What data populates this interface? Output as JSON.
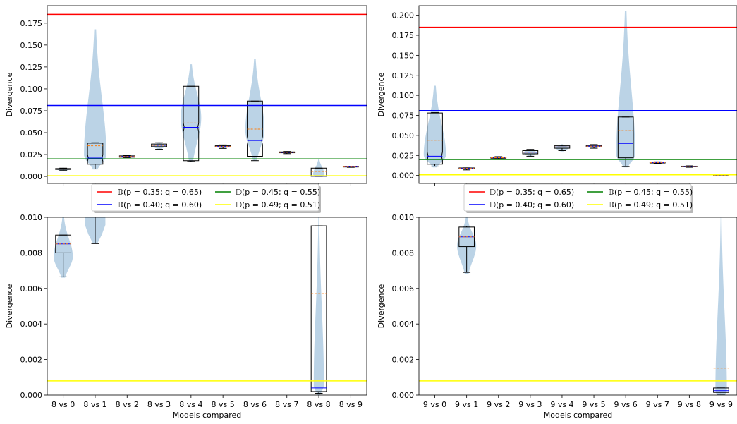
{
  "legend": {
    "items": [
      {
        "label": "𝔻(p = 0.35; q = 0.65)",
        "color": "#ff0000"
      },
      {
        "label": "𝔻(p = 0.45; q = 0.55)",
        "color": "#008000"
      },
      {
        "label": "𝔻(p = 0.40; q = 0.60)",
        "color": "#0000ff"
      },
      {
        "label": "𝔻(p = 0.49; q = 0.51)",
        "color": "#ffff00"
      }
    ]
  },
  "colors": {
    "violin": "#aac8e0",
    "mean_line": "#ff7f0e",
    "median_line": "#0000ff",
    "box_edge": "#000000"
  },
  "chart_data": [
    {
      "type": "box-violin",
      "panel": "top-left",
      "xlabel": "",
      "ylabel": "Divergence",
      "ylim": [
        -0.008,
        0.195
      ],
      "yticks": [
        "0.000",
        "0.025",
        "0.050",
        "0.075",
        "0.100",
        "0.125",
        "0.150",
        "0.175"
      ],
      "categories": [
        "8 vs 0",
        "8 vs 1",
        "8 vs 2",
        "8 vs 3",
        "8 vs 4",
        "8 vs 5",
        "8 vs 6",
        "8 vs 7",
        "8 vs 8",
        "8 vs 9"
      ],
      "show_xticks": false,
      "hlines": [
        {
          "name": "𝔻(p = 0.35; q = 0.65)",
          "y": 0.185,
          "color": "#ff0000"
        },
        {
          "name": "𝔻(p = 0.40; q = 0.60)",
          "y": 0.081,
          "color": "#0000ff"
        },
        {
          "name": "𝔻(p = 0.45; q = 0.55)",
          "y": 0.02,
          "color": "#008000"
        },
        {
          "name": "𝔻(p = 0.49; q = 0.51)",
          "y": 0.0008,
          "color": "#ffff00"
        }
      ],
      "boxes": [
        {
          "q1": 0.008,
          "median": 0.0085,
          "mean": 0.0085,
          "q3": 0.009,
          "wlo": 0.0067,
          "whi": 0.0095,
          "vmin": 0.006,
          "vmax": 0.01,
          "vwidth": 0.2,
          "vpeak": 0.5,
          "notch": false
        },
        {
          "q1": 0.014,
          "median": 0.021,
          "mean": 0.035,
          "q3": 0.038,
          "wlo": 0.0085,
          "whi": 0.0385,
          "vmin": 0.008,
          "vmax": 0.168,
          "vwidth": 0.35,
          "vpeak": 0.1,
          "notch": true
        },
        {
          "q1": 0.022,
          "median": 0.0228,
          "mean": 0.0228,
          "q3": 0.0235,
          "wlo": 0.0215,
          "whi": 0.024,
          "vmin": 0.021,
          "vmax": 0.024,
          "vwidth": 0.22,
          "vpeak": 0.5,
          "notch": false
        },
        {
          "q1": 0.034,
          "median": 0.0355,
          "mean": 0.0355,
          "q3": 0.037,
          "wlo": 0.031,
          "whi": 0.0385,
          "vmin": 0.031,
          "vmax": 0.039,
          "vwidth": 0.22,
          "vpeak": 0.5,
          "notch": false
        },
        {
          "q1": 0.018,
          "median": 0.056,
          "mean": 0.061,
          "q3": 0.103,
          "wlo": 0.017,
          "whi": 0.103,
          "vmin": 0.017,
          "vmax": 0.128,
          "vwidth": 0.32,
          "vpeak": 0.45,
          "notch": true
        },
        {
          "q1": 0.0335,
          "median": 0.0342,
          "mean": 0.0342,
          "q3": 0.035,
          "wlo": 0.032,
          "whi": 0.036,
          "vmin": 0.032,
          "vmax": 0.036,
          "vwidth": 0.22,
          "vpeak": 0.5,
          "notch": false
        },
        {
          "q1": 0.023,
          "median": 0.041,
          "mean": 0.054,
          "q3": 0.086,
          "wlo": 0.018,
          "whi": 0.086,
          "vmin": 0.018,
          "vmax": 0.134,
          "vwidth": 0.3,
          "vpeak": 0.3,
          "notch": true
        },
        {
          "q1": 0.027,
          "median": 0.0275,
          "mean": 0.0275,
          "q3": 0.028,
          "wlo": 0.026,
          "whi": 0.0285,
          "vmin": 0.026,
          "vmax": 0.029,
          "vwidth": 0.2,
          "vpeak": 0.5,
          "notch": false
        },
        {
          "q1": 0.0002,
          "median": 0.0004,
          "mean": 0.0057,
          "q3": 0.0095,
          "wlo": 0.0001,
          "whi": 0.0095,
          "vmin": 0.0,
          "vmax": 0.02,
          "vwidth": 0.18,
          "vpeak": 0.1,
          "notch": false
        },
        {
          "q1": 0.0108,
          "median": 0.0111,
          "mean": 0.0111,
          "q3": 0.0114,
          "wlo": 0.0104,
          "whi": 0.0117,
          "vmin": 0.0104,
          "vmax": 0.0118,
          "vwidth": 0.2,
          "vpeak": 0.5,
          "notch": false
        }
      ]
    },
    {
      "type": "box-violin",
      "panel": "top-right",
      "xlabel": "",
      "ylabel": "Divergence",
      "ylim": [
        -0.01,
        0.212
      ],
      "yticks": [
        "0.000",
        "0.025",
        "0.050",
        "0.075",
        "0.100",
        "0.125",
        "0.150",
        "0.175",
        "0.200"
      ],
      "categories": [
        "9 vs 0",
        "9 vs 1",
        "9 vs 2",
        "9 vs 3",
        "9 vs 4",
        "9 vs 5",
        "9 vs 6",
        "9 vs 7",
        "9 vs 8",
        "9 vs 9"
      ],
      "show_xticks": false,
      "hlines": [
        {
          "name": "𝔻(p = 0.35; q = 0.65)",
          "y": 0.185,
          "color": "#ff0000"
        },
        {
          "name": "𝔻(p = 0.40; q = 0.60)",
          "y": 0.081,
          "color": "#0000ff"
        },
        {
          "name": "𝔻(p = 0.45; q = 0.55)",
          "y": 0.02,
          "color": "#008000"
        },
        {
          "name": "𝔻(p = 0.49; q = 0.51)",
          "y": 0.0008,
          "color": "#ffff00"
        }
      ],
      "boxes": [
        {
          "q1": 0.014,
          "median": 0.024,
          "mean": 0.044,
          "q3": 0.078,
          "wlo": 0.0115,
          "whi": 0.0785,
          "vmin": 0.01,
          "vmax": 0.112,
          "vwidth": 0.35,
          "vpeak": 0.15,
          "notch": true
        },
        {
          "q1": 0.0082,
          "median": 0.0088,
          "mean": 0.0088,
          "q3": 0.0094,
          "wlo": 0.0069,
          "whi": 0.0095,
          "vmin": 0.007,
          "vmax": 0.01,
          "vwidth": 0.2,
          "vpeak": 0.5,
          "notch": false
        },
        {
          "q1": 0.0215,
          "median": 0.0222,
          "mean": 0.0222,
          "q3": 0.0228,
          "wlo": 0.0205,
          "whi": 0.0235,
          "vmin": 0.02,
          "vmax": 0.024,
          "vwidth": 0.22,
          "vpeak": 0.5,
          "notch": false
        },
        {
          "q1": 0.027,
          "median": 0.029,
          "mean": 0.029,
          "q3": 0.031,
          "wlo": 0.024,
          "whi": 0.0325,
          "vmin": 0.024,
          "vmax": 0.033,
          "vwidth": 0.22,
          "vpeak": 0.5,
          "notch": false
        },
        {
          "q1": 0.034,
          "median": 0.0355,
          "mean": 0.0355,
          "q3": 0.037,
          "wlo": 0.031,
          "whi": 0.038,
          "vmin": 0.03,
          "vmax": 0.039,
          "vwidth": 0.22,
          "vpeak": 0.5,
          "notch": false
        },
        {
          "q1": 0.0355,
          "median": 0.0365,
          "mean": 0.0365,
          "q3": 0.0375,
          "wlo": 0.034,
          "whi": 0.0385,
          "vmin": 0.034,
          "vmax": 0.039,
          "vwidth": 0.22,
          "vpeak": 0.5,
          "notch": false
        },
        {
          "q1": 0.022,
          "median": 0.04,
          "mean": 0.056,
          "q3": 0.073,
          "wlo": 0.011,
          "whi": 0.073,
          "vmin": 0.01,
          "vmax": 0.205,
          "vwidth": 0.3,
          "vpeak": 0.08,
          "notch": false
        },
        {
          "q1": 0.0155,
          "median": 0.016,
          "mean": 0.016,
          "q3": 0.0165,
          "wlo": 0.0148,
          "whi": 0.017,
          "vmin": 0.0145,
          "vmax": 0.0172,
          "vwidth": 0.2,
          "vpeak": 0.5,
          "notch": false
        },
        {
          "q1": 0.0108,
          "median": 0.0112,
          "mean": 0.0112,
          "q3": 0.0116,
          "wlo": 0.0102,
          "whi": 0.012,
          "vmin": 0.01,
          "vmax": 0.0122,
          "vwidth": 0.2,
          "vpeak": 0.5,
          "notch": false
        },
        {
          "q1": 0.0,
          "median": 0.0002,
          "mean": 0.0002,
          "q3": 0.0004,
          "wlo": 0.0,
          "whi": 0.0006,
          "vmin": 0.0,
          "vmax": 0.001,
          "vwidth": 0.22,
          "vpeak": 0.5,
          "notch": false
        }
      ]
    },
    {
      "type": "box-violin",
      "panel": "bottom-left",
      "xlabel": "Models compared",
      "ylabel": "Divergence",
      "ylim": [
        0.0,
        0.01
      ],
      "yticks": [
        "0.000",
        "0.002",
        "0.004",
        "0.006",
        "0.008",
        "0.010"
      ],
      "categories": [
        "8 vs 0",
        "8 vs 1",
        "8 vs 2",
        "8 vs 3",
        "8 vs 4",
        "8 vs 5",
        "8 vs 6",
        "8 vs 7",
        "8 vs 8",
        "8 vs 9"
      ],
      "show_xticks": true,
      "hlines": [
        {
          "name": "𝔻(p = 0.49; q = 0.51)",
          "y": 0.0008,
          "color": "#ffff00"
        }
      ],
      "boxes": [
        {
          "q1": 0.008,
          "median": 0.0085,
          "mean": 0.0085,
          "q3": 0.009,
          "wlo": 0.00665,
          "whi": 0.009,
          "vmin": 0.0066,
          "vmax": 0.01,
          "vwidth": 0.3,
          "vpeak": 0.35,
          "notch": false
        },
        {
          "q1": 0.014,
          "median": 0.021,
          "mean": 0.035,
          "q3": 0.038,
          "wlo": 0.00852,
          "whi": 0.0385,
          "vmin": 0.0085,
          "vmax": 0.03,
          "vwidth": 0.32,
          "vpeak": 0.05,
          "notch": false
        },
        null,
        null,
        null,
        null,
        null,
        null,
        {
          "q1": 0.0002,
          "median": 0.0004,
          "mean": 0.00572,
          "q3": 0.00952,
          "wlo": 0.0001,
          "whi": 0.00952,
          "vmin": 0.0,
          "vmax": 0.01,
          "vwidth": 0.16,
          "vpeak": 0.05,
          "notch": false
        },
        null
      ]
    },
    {
      "type": "box-violin",
      "panel": "bottom-right",
      "xlabel": "Models compared",
      "ylabel": "Divergence",
      "ylim": [
        0.0,
        0.01
      ],
      "yticks": [
        "0.000",
        "0.002",
        "0.004",
        "0.006",
        "0.008",
        "0.010"
      ],
      "categories": [
        "9 vs 0",
        "9 vs 1",
        "9 vs 2",
        "9 vs 3",
        "9 vs 4",
        "9 vs 5",
        "9 vs 6",
        "9 vs 7",
        "9 vs 8",
        "9 vs 9"
      ],
      "show_xticks": true,
      "hlines": [
        {
          "name": "𝔻(p = 0.49; q = 0.51)",
          "y": 0.0008,
          "color": "#ffff00"
        }
      ],
      "boxes": [
        null,
        {
          "q1": 0.00835,
          "median": 0.0089,
          "mean": 0.0089,
          "q3": 0.00945,
          "wlo": 0.0069,
          "whi": 0.0095,
          "vmin": 0.0068,
          "vmax": 0.01,
          "vwidth": 0.3,
          "vpeak": 0.5,
          "notch": false
        },
        null,
        null,
        null,
        null,
        null,
        null,
        null,
        {
          "q1": 0.00015,
          "median": 0.00025,
          "mean": 0.00152,
          "q3": 0.0004,
          "wlo": 5e-05,
          "whi": 0.00045,
          "vmin": 0.0,
          "vmax": 0.01,
          "vwidth": 0.18,
          "vpeak": 0.02,
          "notch": false
        }
      ]
    }
  ]
}
